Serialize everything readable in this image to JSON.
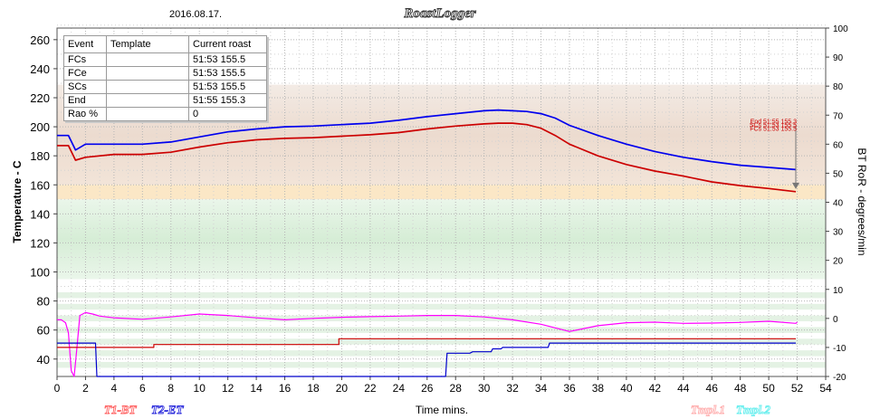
{
  "header": {
    "date": "2016.08.17.",
    "app_title": "RoastLogger"
  },
  "events_table": {
    "columns": [
      "Event",
      "Template",
      "Current roast"
    ],
    "rows": [
      {
        "event": "FCs",
        "template": "",
        "current": "51:53 155.5"
      },
      {
        "event": "FCe",
        "template": "",
        "current": "51:53 155.5"
      },
      {
        "event": "SCs",
        "template": "",
        "current": "51:53 155.5"
      },
      {
        "event": "End",
        "template": "",
        "current": "51:55 155.3"
      },
      {
        "event": "Rao %",
        "template": "",
        "current": "0"
      }
    ]
  },
  "annotations": [
    {
      "text": "End 51:55 155.3",
      "x": 51.9,
      "y": 203.5
    },
    {
      "text": "SCs 51:53 155.5",
      "x": 51.9,
      "y": 201.0
    },
    {
      "text": "FCs 51:53 155.5",
      "x": 51.9,
      "y": 198.5
    }
  ],
  "legend": {
    "left": [
      {
        "label": "T1-BT",
        "color": "#ff6666"
      },
      {
        "label": "T2-ET",
        "color": "#3333dd"
      }
    ],
    "right": [
      {
        "label": "Tmpl.1",
        "color": "#ffb0b0"
      },
      {
        "label": "Tmpl.2",
        "color": "#99ffff"
      }
    ]
  },
  "colors": {
    "bt": "#cc0000",
    "et": "#0000ee",
    "ror_bt": "#cc0000",
    "ror_et": "#0000cc",
    "ror_magenta": "#ff00ff"
  },
  "chart_data": {
    "type": "line",
    "xlabel": "Time mins.",
    "ylabel": "Temperature - C",
    "y2label": "BT RoR - degrees/min",
    "xlim": [
      0,
      54
    ],
    "ylim": [
      28,
      268
    ],
    "y2lim": [
      -20,
      100
    ],
    "x_ticks": [
      0,
      2,
      4,
      6,
      8,
      10,
      12,
      14,
      16,
      18,
      20,
      22,
      24,
      26,
      28,
      30,
      32,
      34,
      36,
      38,
      40,
      42,
      44,
      46,
      48,
      50,
      52,
      54
    ],
    "y_ticks": [
      40,
      60,
      80,
      100,
      120,
      140,
      160,
      180,
      200,
      220,
      240,
      260
    ],
    "y2_ticks": [
      -20,
      -10,
      0,
      10,
      20,
      30,
      40,
      50,
      60,
      70,
      80,
      90,
      100
    ],
    "grid": true,
    "series": [
      {
        "name": "T2-ET",
        "axis": "temperature",
        "x": [
          0,
          0.8,
          1.3,
          2,
          4,
          6,
          8,
          10,
          12,
          14,
          16,
          18,
          20,
          22,
          24,
          26,
          28,
          30,
          31,
          32,
          33,
          34,
          35,
          36,
          38,
          40,
          42,
          44,
          46,
          48,
          50,
          51.9
        ],
        "y": [
          194,
          194,
          184,
          188,
          188,
          188,
          189.5,
          193,
          196.5,
          198.5,
          200,
          200.5,
          201.5,
          202.5,
          204.5,
          207,
          209,
          211,
          211.5,
          211,
          210.5,
          209,
          206,
          201,
          194,
          188,
          183,
          179,
          176,
          173.5,
          172,
          170.5
        ]
      },
      {
        "name": "T1-BT",
        "axis": "temperature",
        "x": [
          0,
          0.8,
          1.3,
          2,
          4,
          6,
          8,
          10,
          12,
          14,
          16,
          18,
          20,
          22,
          24,
          26,
          28,
          30,
          31,
          32,
          33,
          34,
          35,
          36,
          38,
          40,
          42,
          44,
          46,
          48,
          50,
          51.9
        ],
        "y": [
          187,
          187,
          177,
          179,
          181,
          181,
          182.5,
          186,
          189,
          191,
          192,
          192.5,
          193.5,
          194.5,
          196,
          198.5,
          200.5,
          202,
          202.5,
          202.5,
          201.5,
          199,
          194,
          188,
          180,
          174,
          169.5,
          166,
          162,
          159.5,
          157.5,
          155.3
        ]
      },
      {
        "name": "RoR magenta",
        "axis": "ror",
        "x": [
          0,
          0.3,
          0.6,
          0.8,
          1.0,
          1.2,
          1.4,
          1.6,
          2.0,
          2.5,
          3,
          4,
          6,
          8,
          10,
          12,
          14,
          16,
          18,
          20,
          22,
          24,
          26,
          28,
          30,
          32,
          34,
          36,
          38,
          40,
          42,
          44,
          46,
          48,
          50,
          51.9,
          52
        ],
        "y": [
          -0.5,
          -0.5,
          -1.5,
          -5,
          -18,
          -20,
          -10,
          1,
          2,
          1.5,
          0.8,
          0.2,
          -0.3,
          0.5,
          1.5,
          1,
          0.2,
          -0.5,
          0,
          0.4,
          0.6,
          0.8,
          1,
          1,
          0.5,
          -0.5,
          -2,
          -4.5,
          -2.5,
          -1.5,
          -1.3,
          -1.7,
          -1.6,
          -1.4,
          -1,
          -1.7,
          -1.3
        ]
      },
      {
        "name": "RoR red",
        "axis": "ror",
        "x": [
          0,
          6.8,
          6.8,
          19.8,
          19.8,
          51.9
        ],
        "y": [
          -10,
          -10,
          -9,
          -9,
          -7,
          -7
        ]
      },
      {
        "name": "RoR blue",
        "axis": "ror",
        "x": [
          0,
          2.7,
          2.8,
          27.3,
          27.4,
          27.6,
          29,
          29.2,
          30.5,
          30.6,
          31.2,
          31.3,
          34.5,
          34.6,
          51.9
        ],
        "y": [
          -8.5,
          -8.5,
          -20,
          -20,
          -12,
          -12,
          -12,
          -11.5,
          -11.5,
          -10.5,
          -10.5,
          -10,
          -10,
          -8.5,
          -8.5
        ]
      }
    ]
  }
}
